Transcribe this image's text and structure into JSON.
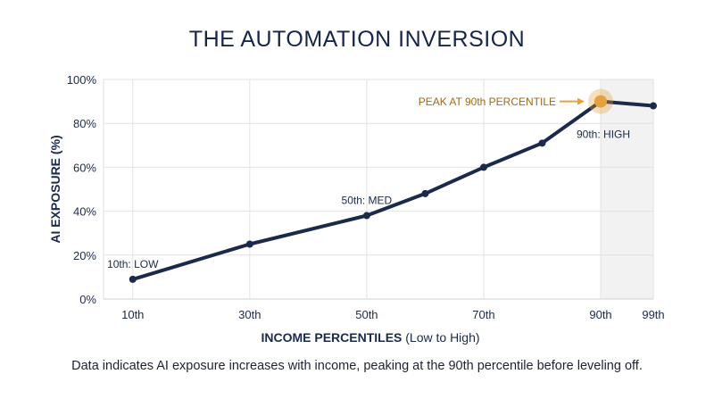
{
  "title": "THE AUTOMATION INVERSION",
  "footer_note": "Data indicates AI exposure increases with income, peaking at the 90th percentile before leveling off.",
  "colors": {
    "line": "#1b2a4a",
    "accent": "#e6a23c",
    "shade": "#f2f2f2",
    "grid": "#e2e2e2",
    "text": "#1b2a45"
  },
  "chart_data": {
    "type": "line",
    "title": "THE AUTOMATION INVERSION",
    "xlabel_bold": "INCOME PERCENTILES",
    "xlabel_rest": " (Low to High)",
    "ylabel": "AI EXPOSURE (%)",
    "x_ticks": [
      "10th",
      "30th",
      "50th",
      "70th",
      "90th",
      "99th"
    ],
    "y_ticks": [
      "0%",
      "20%",
      "40%",
      "60%",
      "80%",
      "100%"
    ],
    "ylim": [
      0,
      100
    ],
    "grid": true,
    "shaded_region": {
      "from": "90th",
      "to": "99th"
    },
    "series": [
      {
        "values": [
          {
            "x": "10th",
            "y": 9
          },
          {
            "x": "30th",
            "y": 25
          },
          {
            "x": "50th",
            "y": 38
          },
          {
            "x": "60th",
            "y": 48
          },
          {
            "x": "70th",
            "y": 60
          },
          {
            "x": "80th",
            "y": 71
          },
          {
            "x": "90th",
            "y": 90
          },
          {
            "x": "99th",
            "y": 88
          }
        ]
      }
    ],
    "annotations": [
      {
        "x": "10th",
        "y": 9,
        "text": "10th: LOW"
      },
      {
        "x": "50th",
        "y": 38,
        "text": "50th: MED"
      },
      {
        "x": "90th",
        "y": 90,
        "text": "90th: HIGH"
      },
      {
        "x": "90th",
        "y": 90,
        "text": "PEAK AT 90th PERCENTILE",
        "highlight": true
      }
    ]
  }
}
